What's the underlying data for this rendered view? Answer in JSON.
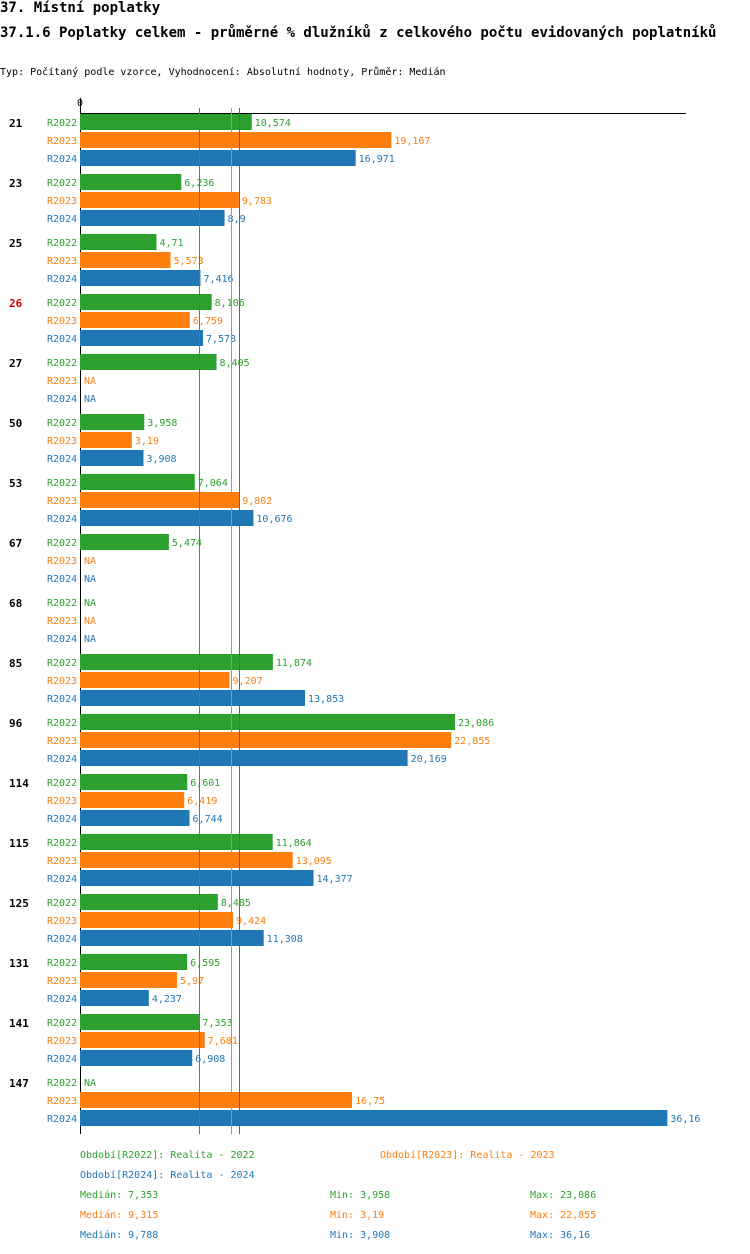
{
  "header": {
    "section": "37. Místní poplatky",
    "title": "37.1.6 Poplatky celkem - průměrné % dlužníků z celkového počtu evidovaných poplatníků",
    "subtitle": "Typ: Počítaný podle vzorce, Vyhodnocení: Absolutní hodnoty, Průměr: Medián"
  },
  "colors": {
    "R2022": "#2ca02c",
    "R2023": "#ff7f0e",
    "R2024": "#1f77b4",
    "highlight": "#cc0000"
  },
  "chart_data": {
    "type": "bar",
    "orientation": "horizontal",
    "axis_zero_label": "0",
    "xlim": [
      0,
      37
    ],
    "na_label": "NA",
    "highlight_category": "26",
    "categories": [
      "21",
      "23",
      "25",
      "26",
      "27",
      "50",
      "53",
      "67",
      "68",
      "85",
      "96",
      "114",
      "115",
      "125",
      "131",
      "141",
      "147"
    ],
    "series": [
      {
        "name": "R2022",
        "values": [
          10.574,
          6.236,
          4.71,
          8.106,
          8.405,
          3.958,
          7.064,
          5.474,
          null,
          11.874,
          23.086,
          6.601,
          11.864,
          8.485,
          6.595,
          7.353,
          null
        ],
        "labels": [
          "10,574",
          "6,236",
          "4,71",
          "8,106",
          "8,405",
          "3,958",
          "7,064",
          "5,474",
          "NA",
          "11,874",
          "23,086",
          "6,601",
          "11,864",
          "8,485",
          "6,595",
          "7,353",
          "NA"
        ]
      },
      {
        "name": "R2023",
        "values": [
          19.167,
          9.783,
          5.573,
          6.759,
          null,
          3.19,
          9.802,
          null,
          null,
          9.207,
          22.855,
          6.419,
          13.095,
          9.424,
          5.97,
          7.681,
          16.75
        ],
        "labels": [
          "19,167",
          "9,783",
          "5,573",
          "6,759",
          "NA",
          "3,19",
          "9,802",
          "NA",
          "NA",
          "9,207",
          "22,855",
          "6,419",
          "13,095",
          "9,424",
          "5,97",
          "7,681",
          "16,75"
        ]
      },
      {
        "name": "R2024",
        "values": [
          16.971,
          8.9,
          7.416,
          7.573,
          null,
          3.908,
          10.676,
          null,
          null,
          13.853,
          20.169,
          6.744,
          14.377,
          11.308,
          4.237,
          6.908,
          36.16
        ],
        "labels": [
          "16,971",
          "8,9",
          "7,416",
          "7,573",
          "NA",
          "3,908",
          "10,676",
          "NA",
          "NA",
          "13,853",
          "20,169",
          "6,744",
          "14,377",
          "11,308",
          "4,237",
          "6,908",
          "36,16"
        ]
      }
    ],
    "medians": {
      "R2022": 7.353,
      "R2023": 9.315,
      "R2024": 9.788
    }
  },
  "legend": {
    "r2022": "Období[R2022]: Realita - 2022",
    "r2023": "Období[R2023]: Realita - 2023",
    "r2024": "Období[R2024]: Realita - 2024"
  },
  "stats": {
    "r2022": {
      "median": "Medián: 7,353",
      "min": "Min: 3,958",
      "max": "Max: 23,086"
    },
    "r2023": {
      "median": "Medián: 9,315",
      "min": "Min: 3,19",
      "max": "Max: 22,855"
    },
    "r2024": {
      "median": "Medián: 9,788",
      "min": "Min: 3,908",
      "max": "Max: 36,16"
    }
  }
}
